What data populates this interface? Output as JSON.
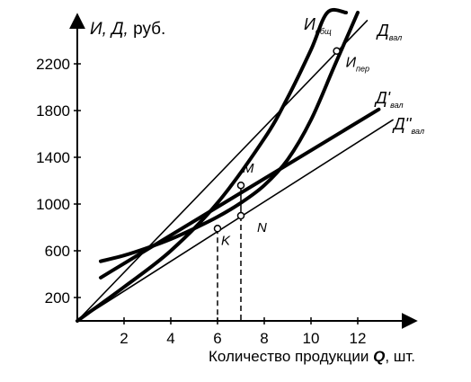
{
  "chart_data": {
    "type": "line",
    "ylabel_main": "И, Д,",
    "ylabel_unit": " руб.",
    "xlabel_main": "Количество продукции ",
    "xlabel_var": "Q",
    "xlabel_unit": ", шт.",
    "xlim": [
      0,
      13.5
    ],
    "ylim": [
      0,
      2600
    ],
    "xticks": [
      2,
      4,
      6,
      8,
      10,
      12
    ],
    "yticks": [
      200,
      600,
      1000,
      1400,
      1800,
      2200
    ],
    "grid": false,
    "series": [
      {
        "name_main": "И",
        "name_sub": "общ",
        "style": "thick",
        "x": [
          1,
          2,
          3,
          4,
          5,
          6,
          7,
          8,
          9,
          10,
          11,
          12
        ],
        "y": [
          510,
          560,
          625,
          700,
          790,
          890,
          1010,
          1160,
          1380,
          1720,
          2180,
          2780
        ]
      },
      {
        "name_main": "Д",
        "name_sub": "вал",
        "style": "thin",
        "x": [
          0,
          12.4
        ],
        "y": [
          0,
          2570
        ]
      },
      {
        "name_main": "Д'",
        "name_sub": "вал",
        "style": "thick",
        "x": [
          1,
          12.9
        ],
        "y": [
          370,
          1810
        ]
      },
      {
        "name_main": "Д''",
        "name_sub": "вал",
        "style": "thin",
        "x": [
          0,
          13.5
        ],
        "y": [
          0,
          1720
        ]
      },
      {
        "name_main": "",
        "name_sub": "",
        "style": "thick",
        "x": [
          0,
          2,
          4,
          6,
          8,
          9,
          10,
          10.7,
          11.5
        ],
        "y": [
          0,
          290,
          600,
          1010,
          1560,
          1910,
          2320,
          2640,
          3000
        ]
      }
    ],
    "points": [
      {
        "label": "M",
        "x": 7,
        "y": 1160
      },
      {
        "label": "N",
        "x": 7,
        "y": 900
      },
      {
        "label": "K",
        "x": 6,
        "y": 790
      },
      {
        "label": "И",
        "sub": "пер",
        "x": 11.1,
        "y": 2310
      }
    ],
    "guides_x": [
      6,
      7
    ]
  }
}
